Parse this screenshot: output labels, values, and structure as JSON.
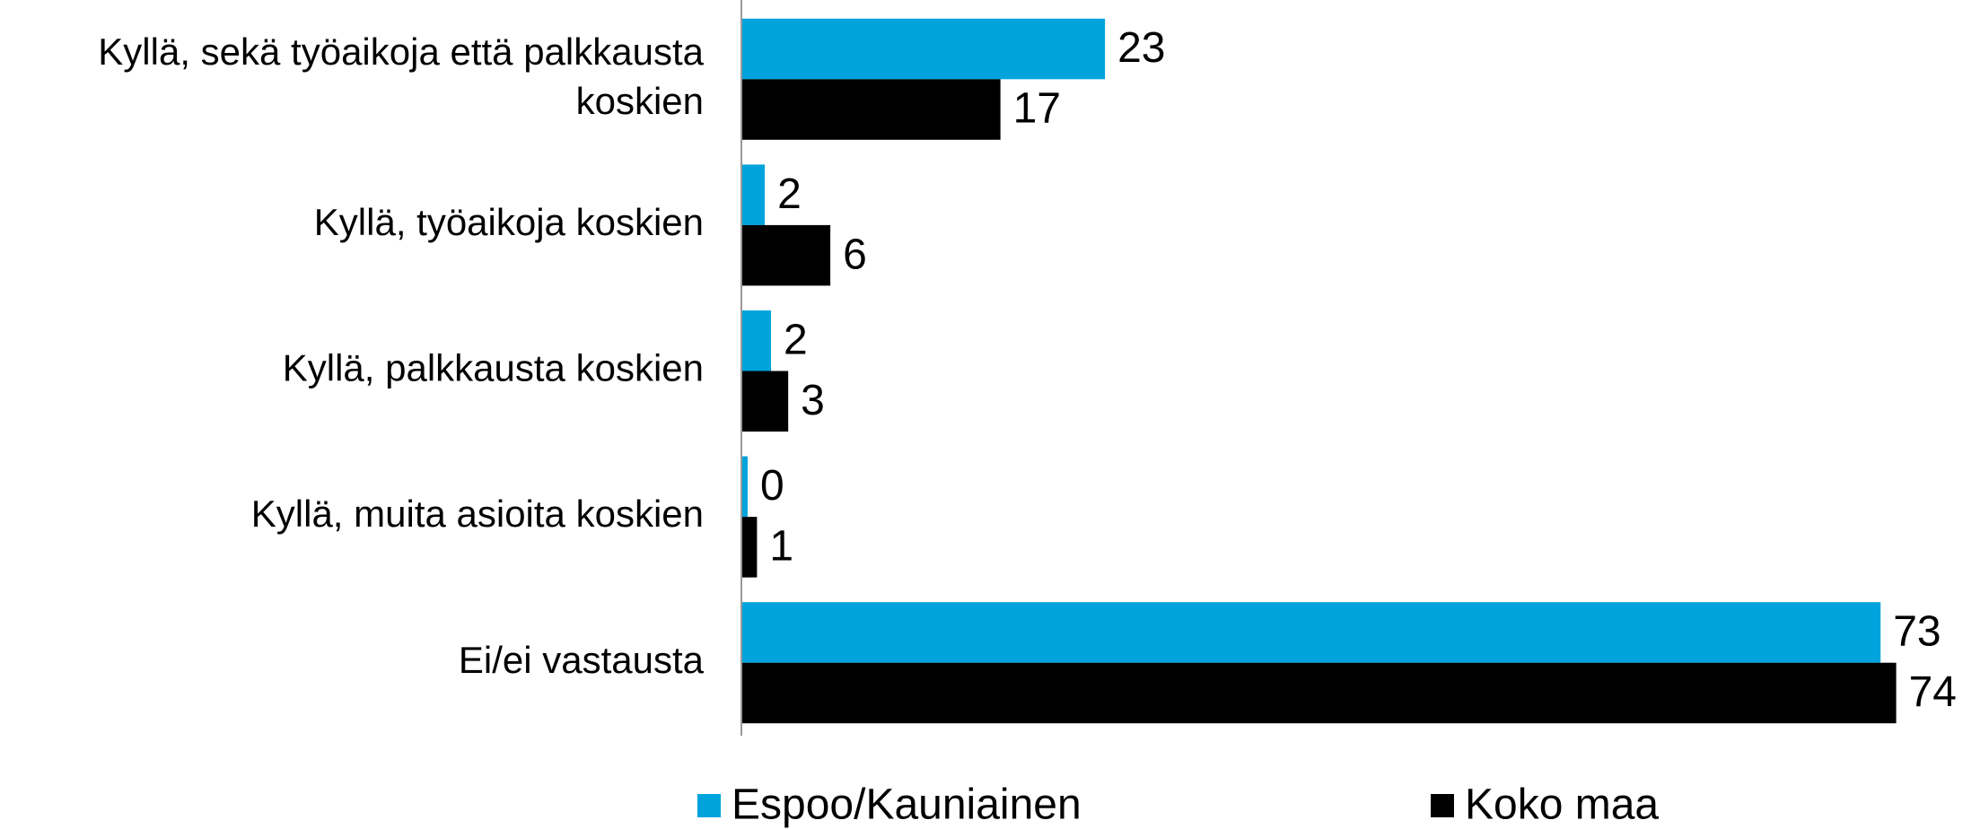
{
  "chart_data": {
    "type": "hbar",
    "categories": [
      "Kyllä, sekä työaikoja että palkkausta koskien",
      "Kyllä, työaikoja koskien",
      "Kyllä, palkkausta koskien",
      "Kyllä, muita asioita koskien",
      "Ei/ei vastausta"
    ],
    "series": [
      {
        "name": "Espoo/Kauniainen",
        "color": "#00a3dc",
        "values": [
          23.3,
          1.5,
          1.9,
          0.4,
          73
        ],
        "value_labels": [
          "23",
          "2",
          "2",
          "0",
          "73"
        ]
      },
      {
        "name": "Koko maa",
        "color": "#000000",
        "values": [
          16.6,
          5.7,
          3.0,
          1.0,
          74
        ],
        "value_labels": [
          "17",
          "6",
          "3",
          "1",
          "74"
        ]
      }
    ],
    "xlim": [
      0,
      75
    ],
    "legend": "bottom"
  }
}
